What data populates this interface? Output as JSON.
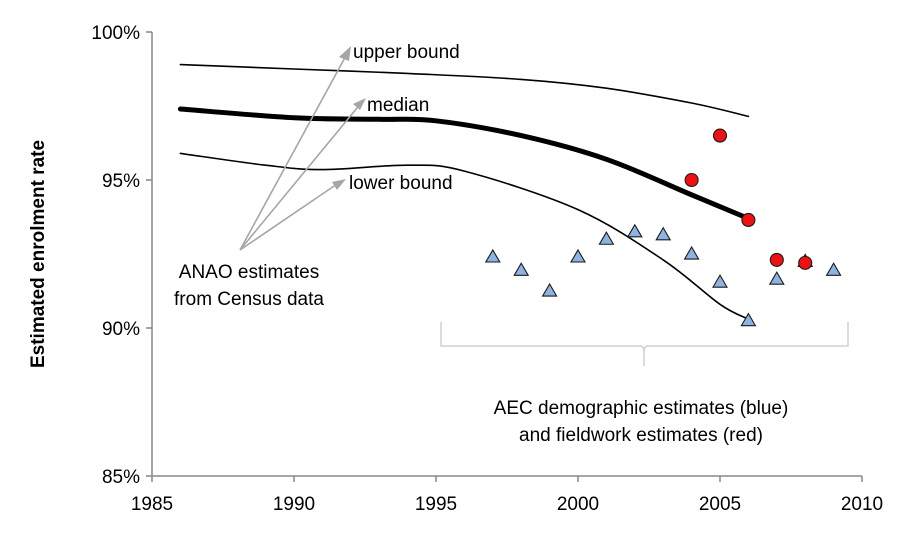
{
  "chart_data": {
    "type": "line",
    "title": "",
    "xlabel": "",
    "ylabel": "Estimated enrolment rate",
    "xlim": [
      1985,
      2010
    ],
    "ylim": [
      85,
      100
    ],
    "xticks": [
      "1985",
      "1990",
      "1995",
      "2000",
      "2005",
      "2010"
    ],
    "yticks": [
      "85%",
      "90%",
      "95%",
      "100%"
    ],
    "grid": false,
    "legend": "none",
    "series": [
      {
        "name": "upper bound",
        "kind": "line",
        "color": "#000000",
        "x": [
          1986,
          1990,
          1994,
          1998,
          2001,
          2004,
          2006
        ],
        "y": [
          98.9,
          98.75,
          98.6,
          98.4,
          98.1,
          97.6,
          97.15
        ]
      },
      {
        "name": "median",
        "kind": "line",
        "color": "#000000",
        "x": [
          1986,
          1990,
          1993,
          1995,
          1998,
          2001,
          2004,
          2006
        ],
        "y": [
          97.4,
          97.1,
          97.05,
          97.0,
          96.5,
          95.7,
          94.5,
          93.7
        ]
      },
      {
        "name": "lower bound",
        "kind": "line",
        "color": "#000000",
        "x": [
          1986,
          1989,
          1991,
          1994,
          1996,
          2000,
          2003,
          2005,
          2006
        ],
        "y": [
          95.9,
          95.5,
          95.35,
          95.5,
          95.3,
          94.0,
          92.3,
          90.8,
          90.3
        ]
      },
      {
        "name": "AEC demographic estimates",
        "kind": "scatter",
        "marker": "triangle",
        "color": "#8db3e2",
        "x": [
          1997,
          1998,
          1999,
          2000,
          2001,
          2002,
          2003,
          2004,
          2005,
          2006,
          2007,
          2008,
          2009
        ],
        "y": [
          92.4,
          91.95,
          91.25,
          92.4,
          93.0,
          93.25,
          93.15,
          92.5,
          91.55,
          90.25,
          91.65,
          92.25,
          91.95
        ]
      },
      {
        "name": "fieldwork estimates",
        "kind": "scatter",
        "marker": "circle",
        "color": "#ee1111",
        "x": [
          2004,
          2005,
          2006,
          2007,
          2008
        ],
        "y": [
          95.0,
          96.5,
          93.65,
          92.3,
          92.2
        ]
      }
    ],
    "annotations": {
      "upper_label": "upper bound",
      "median_label": "median",
      "lower_label": "lower bound",
      "anao_line1": "ANAO estimates",
      "anao_line2": "from Census data",
      "aec_line1": "AEC  demographic estimates (blue)",
      "aec_line2": "and fieldwork estimates (red)"
    }
  }
}
